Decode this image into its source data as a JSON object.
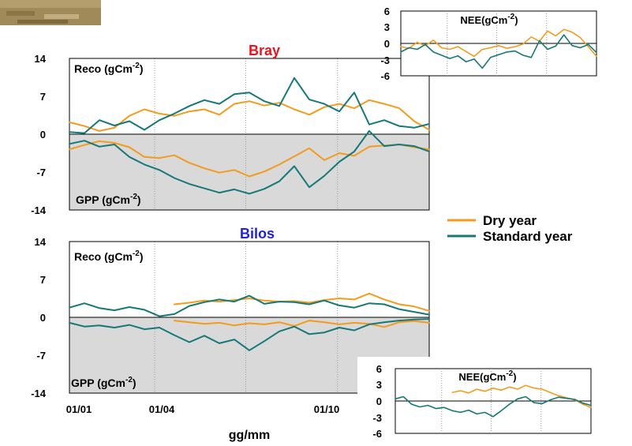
{
  "colors": {
    "dry": "#F39B1D",
    "standard": "#167878",
    "shade": "#D9D9D9",
    "photo": "#A08A5A"
  },
  "legend": [
    {
      "label": "Dry year",
      "color": "#F39B1D"
    },
    {
      "label": "Standard year",
      "color": "#167878"
    }
  ],
  "x_axis": {
    "label": "gg/mm",
    "ticks": [
      "01/01",
      "01/04",
      "01/10"
    ]
  },
  "chart_data": [
    {
      "type": "line",
      "panel": "Bray",
      "title": "Bray",
      "title_color": "#E8151E",
      "upper_label": {
        "main": "Reco (gCm",
        "sup": "-2",
        "tail": ")"
      },
      "lower_label": {
        "main": "GPP (gCm",
        "sup": "-2",
        "tail": ")"
      },
      "yticks": [
        "14",
        "7",
        "0",
        "-7",
        "-14"
      ],
      "ylim": [
        -14,
        14
      ],
      "grid_x": "dotted at 01/04, 01/07, 01/10",
      "x": [
        "01/01",
        "16/01",
        "31/01",
        "15/02",
        "02/03",
        "17/03",
        "01/04",
        "16/04",
        "01/05",
        "16/05",
        "31/05",
        "15/06",
        "30/06",
        "15/07",
        "30/07",
        "14/08",
        "29/08",
        "13/09",
        "28/09",
        "13/10",
        "28/10",
        "12/11",
        "27/11",
        "12/12",
        "27/12"
      ],
      "series": [
        {
          "name": "Dry year",
          "component": "Reco",
          "values": [
            2.2,
            1.5,
            0.6,
            1.2,
            3.4,
            4.6,
            3.8,
            3.4,
            4.2,
            4.6,
            3.6,
            5.6,
            6.1,
            5.3,
            5.8,
            4.6,
            3.6,
            5.0,
            5.6,
            4.8,
            6.3,
            5.6,
            4.8,
            2.4,
            0.8
          ]
        },
        {
          "name": "Standard year",
          "component": "Reco",
          "values": [
            0.4,
            0.2,
            2.6,
            1.6,
            2.4,
            0.8,
            2.6,
            3.8,
            5.2,
            6.3,
            5.6,
            7.4,
            7.7,
            6.1,
            5.2,
            10.4,
            6.4,
            5.6,
            4.2,
            7.7,
            1.8,
            2.6,
            1.5,
            1.2,
            1.9
          ]
        },
        {
          "name": "Dry year",
          "component": "GPP",
          "values": [
            -2.8,
            -2.0,
            -1.3,
            -1.6,
            -2.4,
            -4.2,
            -4.4,
            -3.9,
            -5.3,
            -6.3,
            -7.1,
            -6.6,
            -7.8,
            -6.9,
            -5.6,
            -4.1,
            -2.6,
            -4.8,
            -3.5,
            -4.0,
            -2.3,
            -2.1,
            -1.9,
            -2.4,
            -2.8
          ]
        },
        {
          "name": "Standard year",
          "component": "GPP",
          "values": [
            -1.8,
            -1.2,
            -2.3,
            -1.9,
            -4.2,
            -5.6,
            -6.6,
            -8.1,
            -9.2,
            -10.0,
            -10.8,
            -10.2,
            -11.0,
            -10.1,
            -8.7,
            -5.9,
            -9.8,
            -7.7,
            -5.1,
            -3.2,
            0.6,
            -2.2,
            -1.9,
            -2.2,
            -3.2
          ]
        }
      ]
    },
    {
      "type": "line",
      "panel": "Bilos",
      "title": "Bilos",
      "title_color": "#1F22D8",
      "upper_label": {
        "main": "Reco (gCm",
        "sup": "-2",
        "tail": ")"
      },
      "lower_label": {
        "main": "GPP (gCm",
        "sup": "-2",
        "tail": ")"
      },
      "yticks": [
        "14",
        "7",
        "0",
        "-7",
        "-14"
      ],
      "ylim": [
        -14,
        14
      ],
      "grid_x": "dotted at 01/04, 01/07, 01/10",
      "x": [
        "01/01",
        "16/01",
        "31/01",
        "15/02",
        "02/03",
        "17/03",
        "01/04",
        "16/04",
        "01/05",
        "16/05",
        "31/05",
        "15/06",
        "30/06",
        "15/07",
        "30/07",
        "14/08",
        "29/08",
        "13/09",
        "28/09",
        "13/10",
        "28/10",
        "12/11",
        "27/11",
        "12/12",
        "27/12"
      ],
      "series": [
        {
          "name": "Dry year",
          "component": "Reco",
          "start_index": 7,
          "values": [
            null,
            null,
            null,
            null,
            null,
            null,
            null,
            2.4,
            2.7,
            3.1,
            2.9,
            3.2,
            3.5,
            3.1,
            2.9,
            3.0,
            2.7,
            3.2,
            3.5,
            3.3,
            4.4,
            3.3,
            2.4,
            2.0,
            1.2
          ]
        },
        {
          "name": "Standard year",
          "component": "Reco",
          "values": [
            1.8,
            2.6,
            1.7,
            1.3,
            1.9,
            1.4,
            0.2,
            0.6,
            2.1,
            2.8,
            3.3,
            2.9,
            4.0,
            2.5,
            2.9,
            2.8,
            2.4,
            3.1,
            2.2,
            1.8,
            2.6,
            2.4,
            1.5,
            1.0,
            0.5
          ]
        },
        {
          "name": "Dry year",
          "component": "GPP",
          "start_index": 7,
          "values": [
            null,
            null,
            null,
            null,
            null,
            null,
            null,
            -0.6,
            -0.9,
            -1.2,
            -1.0,
            -1.5,
            -1.1,
            -1.3,
            -0.9,
            -1.6,
            -0.6,
            -0.9,
            -1.3,
            -1.0,
            -1.2,
            -1.8,
            -0.9,
            -0.7,
            -1.0
          ]
        },
        {
          "name": "Standard year",
          "component": "GPP",
          "values": [
            -1.0,
            -1.7,
            -1.5,
            -1.9,
            -1.4,
            -2.2,
            -1.9,
            -3.3,
            -4.6,
            -3.4,
            -4.8,
            -4.1,
            -6.1,
            -4.4,
            -2.6,
            -1.7,
            -3.1,
            -2.8,
            -1.9,
            -2.4,
            -1.3,
            -0.9,
            -0.6,
            -0.4,
            -0.3
          ]
        }
      ]
    },
    {
      "type": "line",
      "panel": "NEE-Bray",
      "title": {
        "main": "NEE(gCm",
        "sup": "-2",
        "tail": ")"
      },
      "yticks": [
        "6",
        "3",
        "0",
        "-3",
        "-6"
      ],
      "ylim": [
        -6,
        6
      ],
      "series": [
        {
          "name": "Dry year",
          "values": [
            -0.6,
            -0.9,
            0.2,
            -0.4,
            0.6,
            -0.8,
            -1.1,
            -0.6,
            -1.5,
            -2.4,
            -1.1,
            -0.8,
            -0.4,
            -0.9,
            -0.6,
            -0.1,
            1.2,
            0.4,
            2.3,
            1.4,
            2.6,
            2.1,
            1.1,
            -0.6,
            -2.4
          ]
        },
        {
          "name": "Standard year",
          "values": [
            -1.6,
            -0.8,
            -1.1,
            -0.2,
            -1.6,
            -2.2,
            -2.8,
            -2.3,
            -3.4,
            -2.9,
            -4.6,
            -2.6,
            -2.1,
            -1.6,
            -1.4,
            -2.2,
            -2.6,
            0.5,
            -1.1,
            -0.5,
            1.6,
            -0.4,
            -0.8,
            -0.2,
            -1.7
          ]
        }
      ]
    },
    {
      "type": "line",
      "panel": "NEE-Bilos",
      "title": {
        "main": "NEE(gCm",
        "sup": "-2",
        "tail": ")"
      },
      "yticks": [
        "6",
        "3",
        "0",
        "-3",
        "-6"
      ],
      "ylim": [
        -6,
        6
      ],
      "series": [
        {
          "name": "Dry year",
          "start_index": 7,
          "values": [
            null,
            null,
            null,
            null,
            null,
            null,
            null,
            1.6,
            1.9,
            1.5,
            2.2,
            1.8,
            2.4,
            2.0,
            2.6,
            2.2,
            2.9,
            2.4,
            2.2,
            1.6,
            1.0,
            0.6,
            0.2,
            -0.6,
            -1.2
          ]
        },
        {
          "name": "Standard year",
          "values": [
            0.4,
            0.8,
            -0.6,
            -1.1,
            -0.8,
            -1.4,
            -1.2,
            -1.8,
            -2.1,
            -1.7,
            -2.4,
            -2.1,
            -2.9,
            -1.8,
            -0.6,
            0.4,
            0.8,
            -0.3,
            -0.5,
            0.2,
            0.7,
            0.5,
            0.3,
            -0.4,
            -0.8
          ]
        }
      ]
    }
  ]
}
